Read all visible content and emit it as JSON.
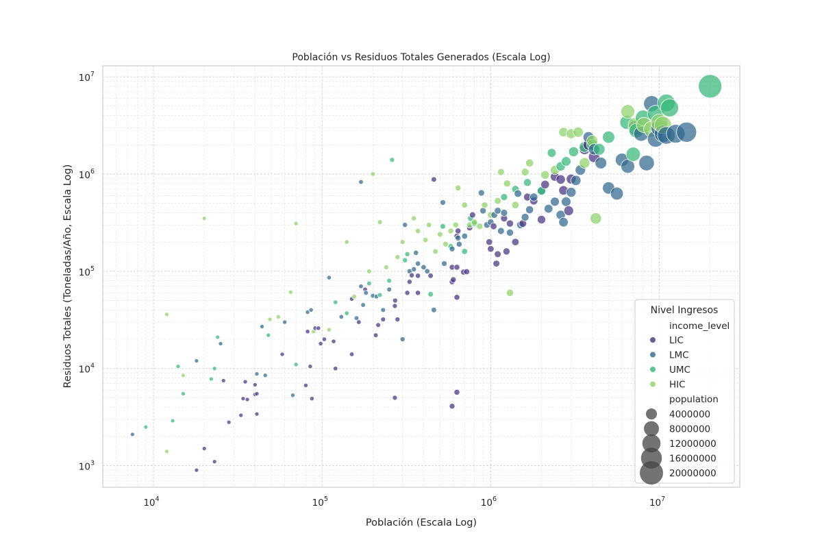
{
  "chart_data": {
    "type": "scatter",
    "title": "Población vs Residuos Totales Generados (Escala Log)",
    "xlabel": "Población (Escala Log)",
    "ylabel": "Residuos Totales (Toneladas/Año, Escala Log)",
    "x_scale": "log",
    "y_scale": "log",
    "xlim": [
      5000,
      30000000
    ],
    "ylim": [
      600,
      13000000
    ],
    "x_ticks": [
      {
        "value": 10000,
        "base": "10",
        "exp": "4"
      },
      {
        "value": 100000,
        "base": "10",
        "exp": "5"
      },
      {
        "value": 1000000,
        "base": "10",
        "exp": "6"
      },
      {
        "value": 10000000,
        "base": "10",
        "exp": "7"
      }
    ],
    "y_ticks": [
      {
        "value": 1000,
        "base": "10",
        "exp": "3"
      },
      {
        "value": 10000,
        "base": "10",
        "exp": "4"
      },
      {
        "value": 100000,
        "base": "10",
        "exp": "5"
      },
      {
        "value": 1000000,
        "base": "10",
        "exp": "6"
      },
      {
        "value": 10000000,
        "base": "10",
        "exp": "7"
      }
    ],
    "grid": true,
    "legend_position": "bottom-right",
    "legend": {
      "title": "Nivel Ingresos",
      "hue_title": "income_level",
      "size_title": "population",
      "size_entries": [
        4000000,
        8000000,
        12000000,
        16000000,
        20000000
      ]
    },
    "series": [
      {
        "name": "LIC",
        "color": "#46327e",
        "points": [
          [
            18000,
            900
          ],
          [
            23000,
            1100
          ],
          [
            20000,
            1500
          ],
          [
            28000,
            2800
          ],
          [
            33000,
            3300
          ],
          [
            41000,
            3400
          ],
          [
            34000,
            4900
          ],
          [
            36000,
            4800
          ],
          [
            40000,
            5400
          ],
          [
            41000,
            5500
          ],
          [
            26000,
            7500
          ],
          [
            35000,
            7300
          ],
          [
            40000,
            6800
          ],
          [
            80000,
            6700
          ],
          [
            87000,
            4900
          ],
          [
            270000,
            5000
          ],
          [
            590000,
            4100
          ],
          [
            630000,
            5700
          ],
          [
            58000,
            14000
          ],
          [
            85000,
            10500
          ],
          [
            120000,
            10000
          ],
          [
            150000,
            14000
          ],
          [
            98000,
            18000
          ],
          [
            103000,
            20000
          ],
          [
            117000,
            19000
          ],
          [
            82000,
            24000
          ],
          [
            91000,
            26000
          ],
          [
            95000,
            26000
          ],
          [
            165000,
            30000
          ],
          [
            208000,
            22000
          ],
          [
            215000,
            28000
          ],
          [
            230000,
            32000
          ],
          [
            270000,
            44000
          ],
          [
            271000,
            50000
          ],
          [
            320000,
            60000
          ],
          [
            150000,
            52000
          ],
          [
            180000,
            65000
          ],
          [
            330000,
            78000
          ],
          [
            340000,
            91000
          ],
          [
            370000,
            90000
          ],
          [
            440000,
            90000
          ],
          [
            590000,
            78000
          ],
          [
            600000,
            82000
          ],
          [
            630000,
            54000
          ],
          [
            630000,
            110000
          ],
          [
            690000,
            98000
          ],
          [
            720000,
            99000
          ],
          [
            590000,
            110000
          ],
          [
            630000,
            230000
          ],
          [
            640000,
            260000
          ],
          [
            750000,
            280000
          ],
          [
            980000,
            200000
          ],
          [
            1000000,
            170000
          ],
          [
            1040000,
            290000
          ],
          [
            1100000,
            150000
          ],
          [
            1080000,
            120000
          ],
          [
            1240000,
            160000
          ],
          [
            1400000,
            200000
          ],
          [
            1300000,
            310000
          ],
          [
            1550000,
            310000
          ],
          [
            1650000,
            580000
          ],
          [
            1800000,
            530000
          ],
          [
            2000000,
            340000
          ],
          [
            2100000,
            780000
          ],
          [
            2400000,
            940000
          ],
          [
            2600000,
            880000
          ],
          [
            2700000,
            680000
          ],
          [
            2900000,
            420000
          ],
          [
            3000000,
            890000
          ],
          [
            3600000,
            1800000
          ],
          [
            3800000,
            2000000
          ],
          [
            4100000,
            1500000
          ],
          [
            460000,
            880000
          ],
          [
            370000,
            60000
          ],
          [
            280000,
            32000
          ],
          [
            780000,
            380000
          ],
          [
            1200000,
            350000
          ]
        ]
      },
      {
        "name": "LMC",
        "color": "#31688e",
        "points": [
          [
            7500,
            2100
          ],
          [
            18000,
            12000
          ],
          [
            25000,
            18000
          ],
          [
            44000,
            27000
          ],
          [
            46000,
            8500
          ],
          [
            41000,
            8800
          ],
          [
            67000,
            5300
          ],
          [
            60000,
            30000
          ],
          [
            82000,
            38000
          ],
          [
            86000,
            40000
          ],
          [
            110000,
            86000
          ],
          [
            130000,
            34000
          ],
          [
            160000,
            33000
          ],
          [
            175000,
            45000
          ],
          [
            170000,
            70000
          ],
          [
            182000,
            60000
          ],
          [
            200000,
            56000
          ],
          [
            210000,
            55000
          ],
          [
            230000,
            40000
          ],
          [
            250000,
            65000
          ],
          [
            300000,
            20000
          ],
          [
            310000,
            300000
          ],
          [
            330000,
            100000
          ],
          [
            350000,
            105000
          ],
          [
            360000,
            155000
          ],
          [
            370000,
            120000
          ],
          [
            400000,
            110000
          ],
          [
            420000,
            100000
          ],
          [
            460000,
            40000
          ],
          [
            520000,
            510000
          ],
          [
            530000,
            120000
          ],
          [
            590000,
            170000
          ],
          [
            640000,
            220000
          ],
          [
            650000,
            190000
          ],
          [
            700000,
            230000
          ],
          [
            880000,
            640000
          ],
          [
            900000,
            420000
          ],
          [
            950000,
            300000
          ],
          [
            1000000,
            320000
          ],
          [
            1050000,
            380000
          ],
          [
            1100000,
            420000
          ],
          [
            1150000,
            260000
          ],
          [
            1200000,
            400000
          ],
          [
            1300000,
            250000
          ],
          [
            1450000,
            630000
          ],
          [
            1500000,
            300000
          ],
          [
            1600000,
            360000
          ],
          [
            1700000,
            430000
          ],
          [
            1800000,
            580000
          ],
          [
            2000000,
            680000
          ],
          [
            2200000,
            440000
          ],
          [
            2400000,
            520000
          ],
          [
            2600000,
            380000
          ],
          [
            2700000,
            320000
          ],
          [
            2800000,
            520000
          ],
          [
            3000000,
            650000
          ],
          [
            3200000,
            860000
          ],
          [
            3400000,
            1100000
          ],
          [
            3800000,
            2400000
          ],
          [
            4100000,
            1800000
          ],
          [
            4500000,
            1300000
          ],
          [
            5000000,
            720000
          ],
          [
            5600000,
            630000
          ],
          [
            6000000,
            1400000
          ],
          [
            6500000,
            1200000
          ],
          [
            7200000,
            3000000
          ],
          [
            7800000,
            2600000
          ],
          [
            8400000,
            1300000
          ],
          [
            9000000,
            5300000
          ],
          [
            9500000,
            2300000
          ],
          [
            10000000,
            3000000
          ],
          [
            10500000,
            2600000
          ],
          [
            11000000,
            2500000
          ],
          [
            12500000,
            2600000
          ],
          [
            14500000,
            2700000
          ],
          [
            170000,
            830000
          ]
        ]
      },
      {
        "name": "UMC",
        "color": "#35b779",
        "points": [
          [
            9000,
            2500
          ],
          [
            13000,
            2900
          ],
          [
            14000,
            10500
          ],
          [
            15000,
            5500
          ],
          [
            22000,
            7800
          ],
          [
            23000,
            10000
          ],
          [
            24000,
            21000
          ],
          [
            48000,
            22000
          ],
          [
            70000,
            11000
          ],
          [
            120000,
            48000
          ],
          [
            140000,
            37000
          ],
          [
            190000,
            75000
          ],
          [
            220000,
            57000
          ],
          [
            250000,
            80000
          ],
          [
            260000,
            1400000
          ],
          [
            310000,
            130000
          ],
          [
            320000,
            150000
          ],
          [
            440000,
            58000
          ],
          [
            520000,
            290000
          ],
          [
            580000,
            180000
          ],
          [
            700000,
            160000
          ],
          [
            760000,
            350000
          ],
          [
            800000,
            310000
          ],
          [
            1200000,
            580000
          ],
          [
            1400000,
            700000
          ],
          [
            1650000,
            820000
          ],
          [
            2000000,
            670000
          ],
          [
            2300000,
            1650000
          ],
          [
            2600000,
            1200000
          ],
          [
            2800000,
            1350000
          ],
          [
            3100000,
            1700000
          ],
          [
            3600000,
            1900000
          ],
          [
            4000000,
            2000000
          ],
          [
            4400000,
            1800000
          ],
          [
            5000000,
            2400000
          ],
          [
            6400000,
            3400000
          ],
          [
            7000000,
            1600000
          ],
          [
            7300000,
            2800000
          ],
          [
            8000000,
            3800000
          ],
          [
            9500000,
            4200000
          ],
          [
            11000000,
            5400000
          ],
          [
            11500000,
            4800000
          ],
          [
            20000000,
            8000000
          ]
        ]
      },
      {
        "name": "HIC",
        "color": "#8fd16b",
        "points": [
          [
            12000,
            36000
          ],
          [
            12000,
            1400
          ],
          [
            15000,
            8500
          ],
          [
            20000,
            350000
          ],
          [
            49000,
            32000
          ],
          [
            55000,
            34000
          ],
          [
            65000,
            61000
          ],
          [
            70000,
            310000
          ],
          [
            89000,
            24000
          ],
          [
            110000,
            25000
          ],
          [
            140000,
            200000
          ],
          [
            155000,
            55000
          ],
          [
            190000,
            100000
          ],
          [
            200000,
            1000000
          ],
          [
            220000,
            320000
          ],
          [
            240000,
            110000
          ],
          [
            280000,
            140000
          ],
          [
            300000,
            200000
          ],
          [
            350000,
            350000
          ],
          [
            370000,
            260000
          ],
          [
            410000,
            210000
          ],
          [
            430000,
            300000
          ],
          [
            470000,
            160000
          ],
          [
            500000,
            240000
          ],
          [
            540000,
            190000
          ],
          [
            580000,
            260000
          ],
          [
            620000,
            300000
          ],
          [
            640000,
            720000
          ],
          [
            700000,
            480000
          ],
          [
            750000,
            300000
          ],
          [
            800000,
            320000
          ],
          [
            860000,
            290000
          ],
          [
            920000,
            480000
          ],
          [
            1000000,
            380000
          ],
          [
            1100000,
            530000
          ],
          [
            1150000,
            1050000
          ],
          [
            1250000,
            800000
          ],
          [
            1300000,
            60000
          ],
          [
            1400000,
            480000
          ],
          [
            1600000,
            1050000
          ],
          [
            1700000,
            1300000
          ],
          [
            2100000,
            980000
          ],
          [
            2400000,
            1100000
          ],
          [
            2700000,
            2700000
          ],
          [
            3000000,
            2600000
          ],
          [
            3300000,
            2700000
          ],
          [
            3600000,
            1300000
          ],
          [
            4000000,
            2200000
          ],
          [
            4200000,
            350000
          ],
          [
            6500000,
            4400000
          ],
          [
            7200000,
            3200000
          ],
          [
            8100000,
            3200000
          ],
          [
            9000000,
            2900000
          ],
          [
            10000000,
            3400000
          ],
          [
            10500000,
            3200000
          ]
        ]
      }
    ]
  }
}
